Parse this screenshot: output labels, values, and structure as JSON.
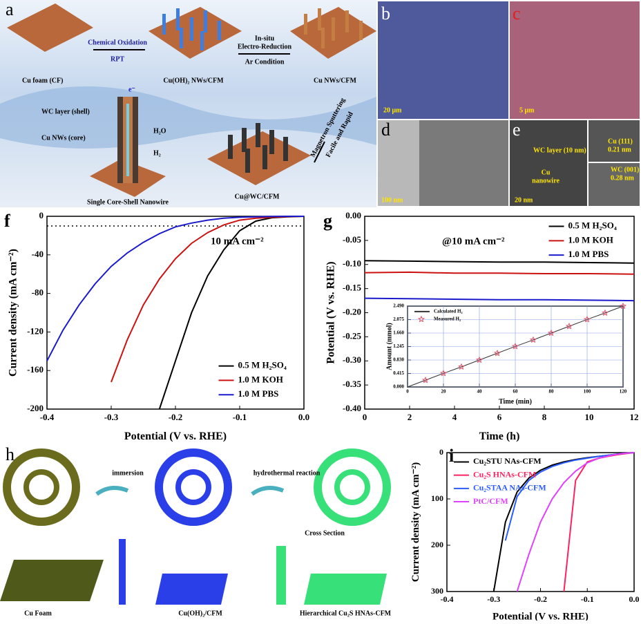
{
  "panel_a": {
    "label": "a",
    "cu_foam": "Cu foam (CF)",
    "step1": "Chemical Oxidation",
    "step1_sub": "RPT",
    "product1": "Cu(OH)₂ NWs/CFM",
    "step2_l1": "In-situ",
    "step2_l2": "Electro-Reduction",
    "step2_l3": "Ar Condition",
    "product2": "Cu NWs/CFM",
    "shell": "WC layer (shell)",
    "core": "Cu NWs (core)",
    "electron": "e⁻",
    "water": "H₂O",
    "hydrogen": "H₂",
    "step3_l1": "Magnetron Sputtering",
    "step3_l2": "Facile and Rapid",
    "nanowire": "Single Core-Shell Nanowire",
    "product3": "Cu@WC/CFM"
  },
  "micrographs": {
    "b": "b",
    "b_scale": "20 μm",
    "c": "c",
    "c_scale": "5 μm",
    "d": "d",
    "d_scale": "100 nm",
    "e": "e",
    "e_scale": "20 nm",
    "wc_layer": "WC layer (10 nm)",
    "cu_l1": "Cu",
    "cu_l2": "nanowire",
    "cu111": "Cu (111)",
    "cu_d": "0.21 nm",
    "wc001": "WC (001)",
    "wc_d": "0.28 nm"
  },
  "panel_h": {
    "label": "h",
    "step1": "immersion",
    "step2": "hydrothermal reaction",
    "cross": "Cross Section",
    "foam": "Cu Foam",
    "mid": "Cu(OH)₂/CFM",
    "final": "Hierarchical Cu₂S HNAs-CFM"
  },
  "chart_data": [
    {
      "type": "line",
      "panel_label": "f",
      "x_label": "Potential (V vs. RHE)",
      "y_label": "Current density (mA cm⁻²)",
      "x": [
        -0.4,
        -0.375,
        -0.35,
        -0.325,
        -0.3,
        -0.275,
        -0.25,
        -0.225,
        -0.2,
        -0.175,
        -0.15,
        -0.125,
        -0.1,
        -0.075,
        -0.05,
        -0.025,
        0
      ],
      "series": [
        {
          "name": "0.5 M H₂SO₄",
          "color": "#000000",
          "values": [
            null,
            null,
            null,
            null,
            null,
            null,
            null,
            -200,
            -150,
            -100,
            -62,
            -35,
            -15,
            -5,
            -1.5,
            -0.5,
            0
          ]
        },
        {
          "name": "1.0 M KOH",
          "color": "#cc1111",
          "values": [
            null,
            null,
            null,
            null,
            -172,
            -128,
            -92,
            -65,
            -44,
            -28,
            -17,
            -9,
            -4,
            -2,
            -1,
            -0.3,
            0
          ]
        },
        {
          "name": "1.0 M PBS",
          "color": "#1a1acc",
          "values": [
            -150,
            -118,
            -92,
            -70,
            -52,
            -38,
            -27,
            -18,
            -11,
            -7,
            -4,
            -2,
            -1,
            -0.5,
            -0.2,
            0,
            0
          ]
        }
      ],
      "xlim": [
        -0.4,
        0
      ],
      "xticks": [
        -0.4,
        -0.3,
        -0.2,
        -0.1,
        {
          "value": 0,
          "label": "0.0"
        }
      ],
      "ylim": [
        -200,
        0
      ],
      "yticks": [
        -200,
        -160,
        -120,
        -80,
        -40,
        0
      ],
      "reference_line": -10,
      "annotation": "10 mA cm⁻²",
      "legend": "lower right"
    },
    {
      "type": "line",
      "panel_label": "g",
      "x_label": "Time (h)",
      "y_label": "Potential (V vs. RHE)",
      "x": [
        0,
        2,
        4,
        6,
        8,
        10,
        12
      ],
      "series": [
        {
          "name": "0.5 M H₂SO₄",
          "color": "#000000",
          "values": [
            -0.092,
            -0.093,
            -0.094,
            -0.095,
            -0.095,
            -0.096,
            -0.097
          ]
        },
        {
          "name": "1.0 M KOH",
          "color": "#cc1111",
          "values": [
            -0.117,
            -0.116,
            -0.118,
            -0.118,
            -0.119,
            -0.119,
            -0.12
          ]
        },
        {
          "name": "1.0 M PBS",
          "color": "#1a1acc",
          "values": [
            -0.17,
            -0.171,
            -0.172,
            -0.173,
            -0.173,
            -0.174,
            -0.175
          ]
        }
      ],
      "xlim": [
        0,
        12
      ],
      "xticks": [
        0,
        2,
        4,
        6,
        8,
        10,
        12
      ],
      "ylim": [
        -0.4,
        0
      ],
      "yticks": [
        {
          "value": -0.4,
          "label": "-0.40"
        },
        {
          "value": -0.35,
          "label": "-0.35"
        },
        {
          "value": -0.3,
          "label": "-0.30"
        },
        {
          "value": -0.25,
          "label": "-0.25"
        },
        {
          "value": -0.2,
          "label": "-0.20"
        },
        {
          "value": -0.15,
          "label": "-0.15"
        },
        {
          "value": -0.1,
          "label": "-0.10"
        },
        {
          "value": -0.05,
          "label": "-0.05"
        },
        {
          "value": 0,
          "label": "0.00"
        }
      ],
      "annotation": "@10 mA cm⁻²",
      "legend": "upper right"
    },
    {
      "type": "line",
      "x_label": "Time (min)",
      "y_label": "Amount (mmol)",
      "x": [
        0,
        10,
        20,
        30,
        40,
        50,
        60,
        70,
        80,
        90,
        100,
        110,
        120
      ],
      "series": [
        {
          "name": "Calculated H₂",
          "color": "#333333",
          "values": [
            0,
            0.21,
            0.42,
            0.62,
            0.83,
            1.04,
            1.25,
            1.45,
            1.66,
            1.87,
            2.08,
            2.28,
            2.49
          ]
        },
        {
          "name": "Measured H₂",
          "color": "#e0506a",
          "marker": "star",
          "values": [
            null,
            0.21,
            0.42,
            0.62,
            0.83,
            1.04,
            1.25,
            1.45,
            1.66,
            1.87,
            2.08,
            2.28,
            2.49
          ]
        }
      ],
      "xlim": [
        0,
        120
      ],
      "xticks": [
        0,
        20,
        40,
        60,
        80,
        100,
        120
      ],
      "ylim": [
        0,
        2.49
      ],
      "yticks": [
        {
          "value": 0,
          "label": "0.000"
        },
        {
          "value": 0.415,
          "label": "0.415"
        },
        {
          "value": 0.83,
          "label": "0.830"
        },
        {
          "value": 1.245,
          "label": "1.245"
        },
        {
          "value": 1.66,
          "label": "1.660"
        },
        {
          "value": 2.075,
          "label": "2.075"
        },
        {
          "value": 2.49,
          "label": "2.490"
        }
      ],
      "grid": true,
      "legend": "upper left"
    },
    {
      "type": "line",
      "panel_label": "i",
      "x_label": "Potential (V vs. RHE)",
      "y_label": "Current density (mA cm⁻²)",
      "x": [
        -0.4,
        -0.375,
        -0.35,
        -0.325,
        -0.3,
        -0.275,
        -0.25,
        -0.225,
        -0.2,
        -0.175,
        -0.15,
        -0.125,
        -0.1,
        -0.075,
        -0.05,
        -0.025,
        0
      ],
      "series": [
        {
          "name": "Cu₂STU NAs-CFM",
          "color": "#000000",
          "values": [
            null,
            null,
            null,
            null,
            -300,
            -150,
            -85,
            -55,
            -38,
            -27,
            -20,
            -15,
            -11,
            -8,
            -5,
            -2,
            0
          ]
        },
        {
          "name": "Cu₂S HNAs-CFM",
          "color": "#ff2060",
          "values": [
            null,
            null,
            null,
            null,
            null,
            null,
            null,
            null,
            null,
            null,
            -300,
            -60,
            -20,
            -12,
            -7,
            -3,
            0
          ]
        },
        {
          "name": "Cu₂STAA NAs-CFM",
          "color": "#2a5cff",
          "values": [
            null,
            null,
            null,
            null,
            null,
            -190,
            -95,
            -60,
            -42,
            -30,
            -22,
            -16,
            -12,
            -8,
            -5,
            -2,
            0
          ]
        },
        {
          "name": "PtC/CFM",
          "color": "#e040ff",
          "values": [
            null,
            null,
            null,
            null,
            null,
            null,
            -300,
            -220,
            -150,
            -100,
            -65,
            -40,
            -22,
            -12,
            -6,
            -2,
            0
          ]
        }
      ],
      "xlim": [
        -0.4,
        0
      ],
      "xticks": [
        -0.4,
        -0.3,
        -0.2,
        -0.1,
        {
          "value": 0,
          "label": "0.0"
        }
      ],
      "ylim": [
        -300,
        0
      ],
      "yticks": [
        {
          "value": -300,
          "label": "300"
        },
        {
          "value": -200,
          "label": "200"
        },
        {
          "value": -100,
          "label": "100"
        },
        0
      ],
      "legend": "upper left"
    }
  ]
}
